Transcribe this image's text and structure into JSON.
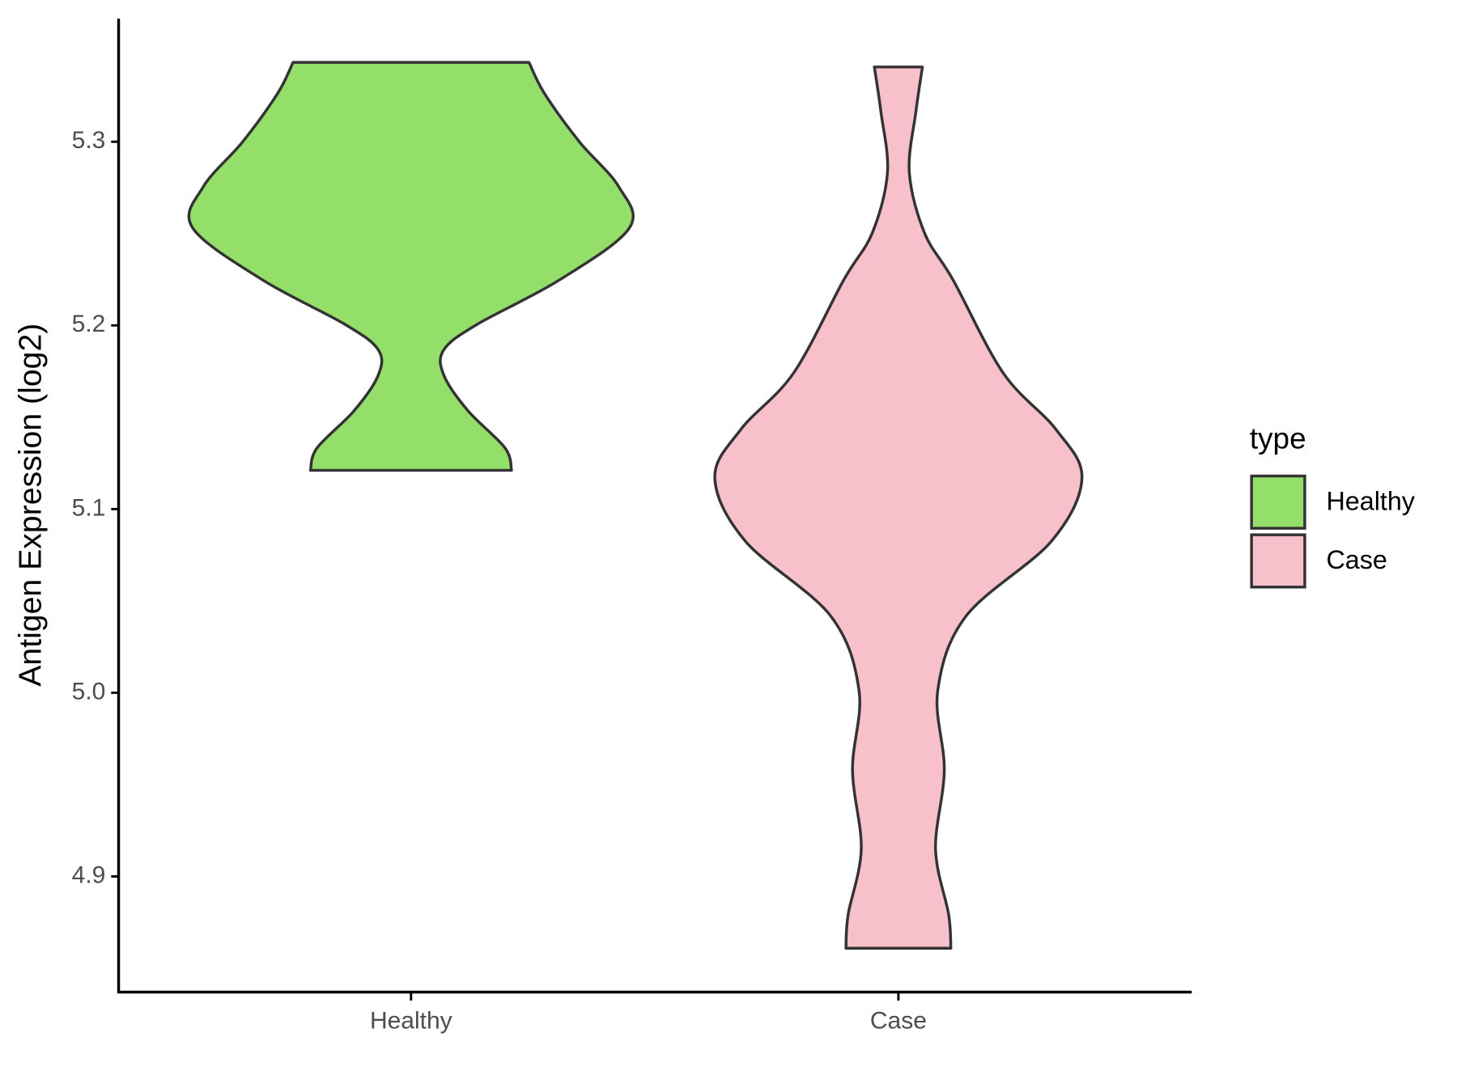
{
  "chart_data": {
    "type": "violin",
    "y_label": "Antigen Expression (log2)",
    "categories": [
      "Healthy",
      "Case"
    ],
    "legend_title": "type",
    "ylim": [
      4.837,
      5.367
    ],
    "yticks": [
      4.9,
      {
        "value": 5,
        "label": "5.0"
      },
      5.1,
      5.2,
      5.3
    ],
    "series": [
      {
        "name": "Healthy",
        "color": "#94de6a",
        "values": [
          5.3432,
          5.3264,
          5.3,
          5.2756,
          5.2532,
          5.2248,
          5.2004,
          5.1867,
          5.1729,
          5.1536,
          5.1333,
          5.1211
        ],
        "density": [
          0.54,
          0.61,
          0.77,
          0.95,
          1.0,
          0.68,
          0.3,
          0.15,
          0.15,
          0.26,
          0.43,
          0.46
        ]
      },
      {
        "name": "Case",
        "color": "#f7c0cb",
        "values": [
          5.3407,
          5.3163,
          5.2832,
          5.2502,
          5.2248,
          5.174,
          5.1435,
          5.117,
          5.0825,
          5.0418,
          5.0011,
          4.9579,
          4.9147,
          4.8792,
          4.8609
        ],
        "density": [
          0.11,
          0.08,
          0.05,
          0.12,
          0.25,
          0.48,
          0.72,
          0.84,
          0.7,
          0.31,
          0.18,
          0.21,
          0.17,
          0.23,
          0.24
        ]
      }
    ]
  }
}
